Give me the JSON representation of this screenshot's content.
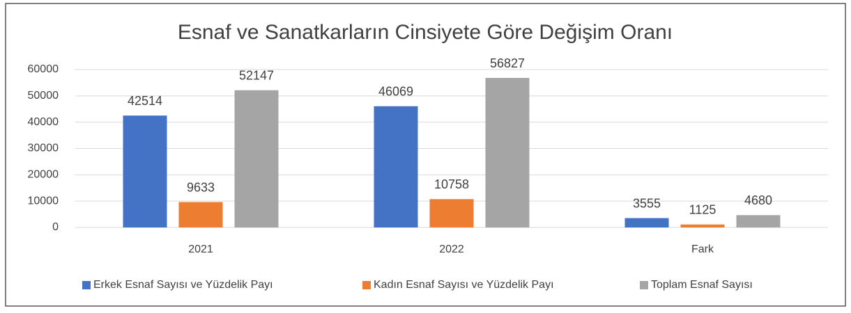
{
  "chart_data": {
    "type": "bar",
    "title": "Esnaf ve Sanatkarların Cinsiyete Göre Değişim Oranı",
    "categories": [
      "2021",
      "2022",
      "Fark"
    ],
    "series": [
      {
        "name": "Erkek Esnaf Sayısı ve Yüzdelik Payı",
        "color": "#4472c4",
        "values": [
          42514,
          46069,
          3555
        ]
      },
      {
        "name": "Kadın Esnaf Sayısı ve Yüzdelik Payı",
        "color": "#ed7d31",
        "values": [
          9633,
          10758,
          1125
        ]
      },
      {
        "name": "Toplam Esnaf Sayısı",
        "color": "#a5a5a5",
        "values": [
          52147,
          56827,
          4680
        ]
      }
    ],
    "ylim": [
      0,
      60000
    ],
    "yticks": [
      0,
      10000,
      20000,
      30000,
      40000,
      50000,
      60000
    ],
    "grid": true,
    "legend": "bottom"
  }
}
